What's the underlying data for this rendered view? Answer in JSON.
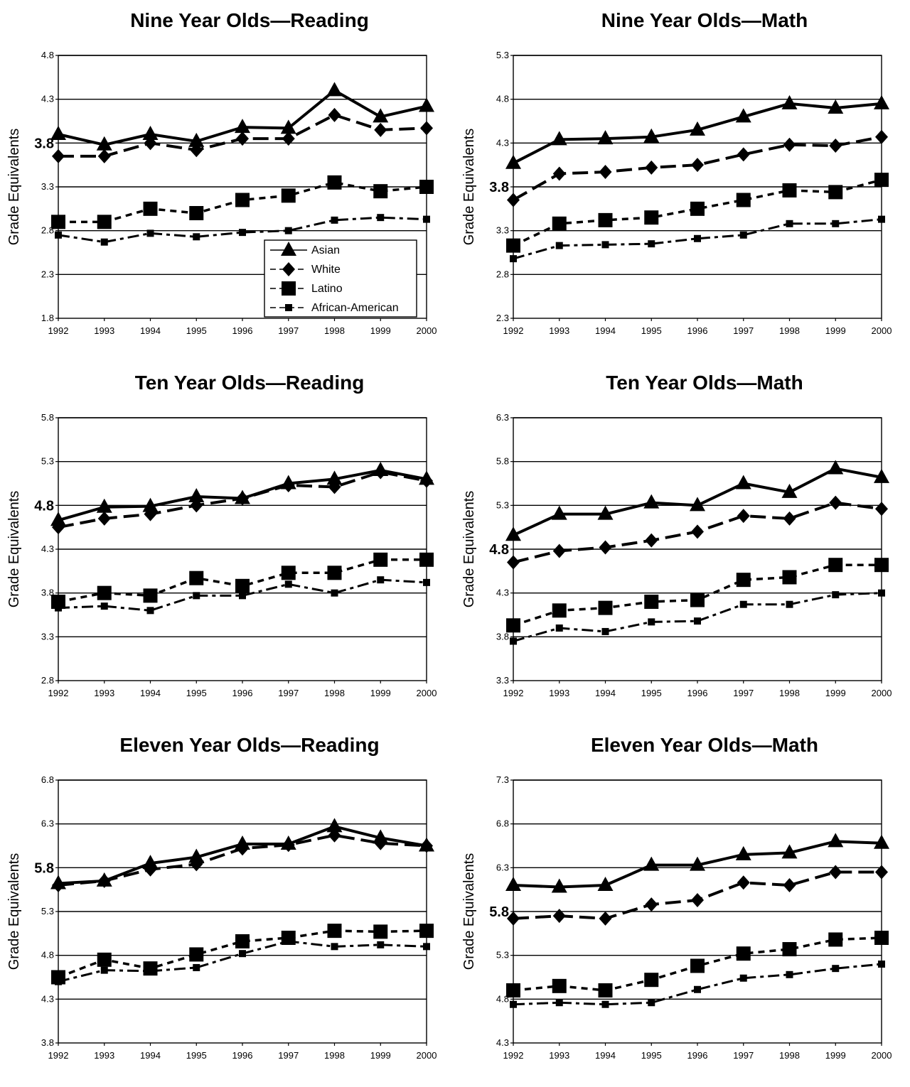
{
  "legend": {
    "entries": [
      {
        "name": "Asian",
        "marker": "triangle",
        "dash": "solid"
      },
      {
        "name": "White",
        "marker": "diamond",
        "dash": "longdash"
      },
      {
        "name": "Latino",
        "marker": "square-large",
        "dash": "shortdash"
      },
      {
        "name": "African-American",
        "marker": "square-small",
        "dash": "dashdot"
      }
    ]
  },
  "chart_data": [
    {
      "type": "line",
      "title": "Nine Year Olds—Reading",
      "ylabel": "Grade Equivalents",
      "xlabel": "",
      "categories": [
        "1992",
        "1993",
        "1994",
        "1995",
        "1996",
        "1997",
        "1998",
        "1999",
        "2000"
      ],
      "ylim": [
        1.8,
        4.8
      ],
      "yticks": [
        "1.8",
        "2.3",
        "2.8",
        "3.3",
        "3.8",
        "4.3",
        "4.8"
      ],
      "highlight_tick": "3.8",
      "grid": true,
      "legend_shown": true,
      "legend_position": "bottom-right",
      "series": [
        {
          "name": "Asian",
          "values": [
            3.9,
            3.78,
            3.9,
            3.82,
            3.98,
            3.97,
            4.4,
            4.1,
            4.22
          ]
        },
        {
          "name": "White",
          "values": [
            3.65,
            3.65,
            3.8,
            3.72,
            3.85,
            3.85,
            4.12,
            3.95,
            3.97
          ]
        },
        {
          "name": "Latino",
          "values": [
            2.9,
            2.9,
            3.05,
            3.0,
            3.15,
            3.2,
            3.35,
            3.25,
            3.3
          ]
        },
        {
          "name": "African-American",
          "values": [
            2.75,
            2.67,
            2.77,
            2.73,
            2.78,
            2.8,
            2.92,
            2.95,
            2.93
          ]
        }
      ]
    },
    {
      "type": "line",
      "title": "Nine Year Olds—Math",
      "ylabel": "Grade Equivalents",
      "xlabel": "",
      "categories": [
        "1992",
        "1993",
        "1994",
        "1995",
        "1996",
        "1997",
        "1998",
        "1999",
        "2000"
      ],
      "ylim": [
        2.3,
        5.3
      ],
      "yticks": [
        "2.3",
        "2.8",
        "3.3",
        "3.8",
        "4.3",
        "4.8",
        "5.3"
      ],
      "highlight_tick": "3.8",
      "grid": true,
      "legend_shown": false,
      "series": [
        {
          "name": "Asian",
          "values": [
            4.07,
            4.34,
            4.35,
            4.37,
            4.45,
            4.6,
            4.75,
            4.7,
            4.75
          ]
        },
        {
          "name": "White",
          "values": [
            3.65,
            3.95,
            3.97,
            4.02,
            4.05,
            4.17,
            4.28,
            4.27,
            4.37
          ]
        },
        {
          "name": "Latino",
          "values": [
            3.13,
            3.38,
            3.42,
            3.45,
            3.55,
            3.65,
            3.76,
            3.74,
            3.88
          ]
        },
        {
          "name": "African-American",
          "values": [
            2.98,
            3.13,
            3.14,
            3.15,
            3.21,
            3.25,
            3.38,
            3.38,
            3.43
          ]
        }
      ]
    },
    {
      "type": "line",
      "title": "Ten Year Olds—Reading",
      "ylabel": "Grade Equivalents",
      "xlabel": "",
      "categories": [
        "1992",
        "1993",
        "1994",
        "1995",
        "1996",
        "1997",
        "1998",
        "1999",
        "2000"
      ],
      "ylim": [
        2.8,
        5.8
      ],
      "yticks": [
        "2.8",
        "3.3",
        "3.8",
        "4.3",
        "4.8",
        "5.3",
        "5.8"
      ],
      "highlight_tick": "4.8",
      "grid": true,
      "legend_shown": false,
      "series": [
        {
          "name": "Asian",
          "values": [
            4.63,
            4.78,
            4.79,
            4.9,
            4.88,
            5.05,
            5.1,
            5.2,
            5.1
          ]
        },
        {
          "name": "White",
          "values": [
            4.55,
            4.65,
            4.7,
            4.8,
            4.88,
            5.03,
            5.01,
            5.18,
            5.08
          ]
        },
        {
          "name": "Latino",
          "values": [
            3.7,
            3.8,
            3.77,
            3.97,
            3.88,
            4.03,
            4.03,
            4.18,
            4.18
          ]
        },
        {
          "name": "African-American",
          "values": [
            3.63,
            3.65,
            3.6,
            3.77,
            3.77,
            3.9,
            3.8,
            3.95,
            3.92
          ]
        }
      ]
    },
    {
      "type": "line",
      "title": "Ten Year Olds—Math",
      "ylabel": "Grade Equivalents",
      "xlabel": "",
      "categories": [
        "1992",
        "1993",
        "1994",
        "1995",
        "1996",
        "1997",
        "1998",
        "1999",
        "2000"
      ],
      "ylim": [
        3.3,
        6.3
      ],
      "yticks": [
        "3.3",
        "3.8",
        "4.3",
        "4.8",
        "5.3",
        "5.8",
        "6.3"
      ],
      "highlight_tick": "4.8",
      "grid": true,
      "legend_shown": false,
      "series": [
        {
          "name": "Asian",
          "values": [
            4.96,
            5.2,
            5.2,
            5.33,
            5.3,
            5.55,
            5.45,
            5.72,
            5.62
          ]
        },
        {
          "name": "White",
          "values": [
            4.65,
            4.78,
            4.82,
            4.9,
            5.0,
            5.18,
            5.15,
            5.33,
            5.26
          ]
        },
        {
          "name": "Latino",
          "values": [
            3.93,
            4.1,
            4.13,
            4.2,
            4.22,
            4.45,
            4.48,
            4.62,
            4.62
          ]
        },
        {
          "name": "African-American",
          "values": [
            3.75,
            3.9,
            3.86,
            3.97,
            3.98,
            4.17,
            4.17,
            4.28,
            4.3
          ]
        }
      ]
    },
    {
      "type": "line",
      "title": "Eleven Year Olds—Reading",
      "ylabel": "Grade Equivalents",
      "xlabel": "",
      "categories": [
        "1992",
        "1993",
        "1994",
        "1995",
        "1996",
        "1997",
        "1998",
        "1999",
        "2000"
      ],
      "ylim": [
        3.8,
        6.8
      ],
      "yticks": [
        "3.8",
        "4.3",
        "4.8",
        "5.3",
        "5.8",
        "6.3",
        "6.8"
      ],
      "highlight_tick": "5.8",
      "grid": true,
      "legend_shown": false,
      "series": [
        {
          "name": "Asian",
          "values": [
            5.62,
            5.65,
            5.85,
            5.92,
            6.07,
            6.07,
            6.27,
            6.14,
            6.05
          ]
        },
        {
          "name": "White",
          "values": [
            5.6,
            5.65,
            5.78,
            5.84,
            6.02,
            6.06,
            6.17,
            6.08,
            6.05
          ]
        },
        {
          "name": "Latino",
          "values": [
            4.55,
            4.75,
            4.65,
            4.81,
            4.96,
            5.0,
            5.08,
            5.07,
            5.08
          ]
        },
        {
          "name": "African-American",
          "values": [
            4.5,
            4.63,
            4.62,
            4.66,
            4.82,
            4.96,
            4.9,
            4.92,
            4.9
          ]
        }
      ]
    },
    {
      "type": "line",
      "title": "Eleven Year Olds—Math",
      "ylabel": "Grade Equivalents",
      "xlabel": "",
      "categories": [
        "1992",
        "1993",
        "1994",
        "1995",
        "1996",
        "1997",
        "1998",
        "1999",
        "2000"
      ],
      "ylim": [
        4.3,
        7.3
      ],
      "yticks": [
        "4.3",
        "4.8",
        "5.3",
        "5.8",
        "6.3",
        "6.8",
        "7.3"
      ],
      "highlight_tick": "5.8",
      "grid": true,
      "legend_shown": false,
      "series": [
        {
          "name": "Asian",
          "values": [
            6.1,
            6.08,
            6.1,
            6.33,
            6.33,
            6.45,
            6.47,
            6.6,
            6.58
          ]
        },
        {
          "name": "White",
          "values": [
            5.72,
            5.75,
            5.72,
            5.88,
            5.93,
            6.13,
            6.1,
            6.25,
            6.25
          ]
        },
        {
          "name": "Latino",
          "values": [
            4.9,
            4.95,
            4.9,
            5.02,
            5.18,
            5.32,
            5.37,
            5.48,
            5.5
          ]
        },
        {
          "name": "African-American",
          "values": [
            4.74,
            4.76,
            4.74,
            4.76,
            4.91,
            5.04,
            5.08,
            5.15,
            5.2
          ]
        }
      ]
    }
  ]
}
